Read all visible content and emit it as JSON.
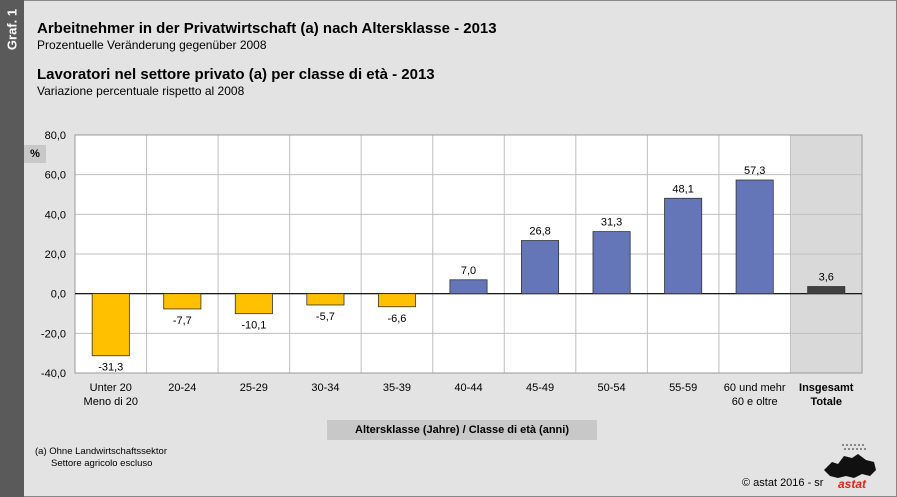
{
  "sidebar_label": "Graf. 1",
  "title_de": "Arbeitnehmer in der Privatwirtschaft (a) nach Altersklasse - 2013",
  "subtitle_de": "Prozentuelle Veränderung gegenüber 2008",
  "title_it": "Lavoratori nel settore privato (a) per classe di età - 2013",
  "subtitle_it": "Variazione percentuale rispetto al 2008",
  "unit": "%",
  "axis_title": "Altersklasse (Jahre) / Classe di età (anni)",
  "footnote": [
    "(a) Ohne Landwirtschaftssektor",
    "Settore agricolo escluso"
  ],
  "copyright": "© astat 2016 - sr",
  "logo_text": "astat",
  "colors": {
    "negative": "#ffc000",
    "positive": "#6576b8",
    "total": "#404040",
    "total_bg": "#d9d9d9"
  },
  "chart_data": {
    "type": "bar",
    "categories": [
      [
        "Unter 20",
        "Meno di 20"
      ],
      [
        "20-24"
      ],
      [
        "25-29"
      ],
      [
        "30-34"
      ],
      [
        "35-39"
      ],
      [
        "40-44"
      ],
      [
        "45-49"
      ],
      [
        "50-54"
      ],
      [
        "55-59"
      ],
      [
        "60 und mehr",
        "60 e oltre"
      ],
      [
        "Insgesamt",
        "Totale"
      ]
    ],
    "values": [
      -31.3,
      -7.7,
      -10.1,
      -5.7,
      -6.6,
      7.0,
      26.8,
      31.3,
      48.1,
      57.3,
      3.6
    ],
    "labels": [
      "-31,3",
      "-7,7",
      "-10,1",
      "-5,7",
      "-6,6",
      "7,0",
      "26,8",
      "31,3",
      "48,1",
      "57,3",
      "3,6"
    ],
    "yticks": [
      "-40,0",
      "-20,0",
      "0,0",
      "20,0",
      "40,0",
      "60,0",
      "80,0"
    ],
    "ylim": [
      -40,
      80
    ],
    "xlabel": "Altersklasse (Jahre) / Classe di età (anni)",
    "ylabel": "%",
    "grid": true,
    "total_index": 10
  }
}
